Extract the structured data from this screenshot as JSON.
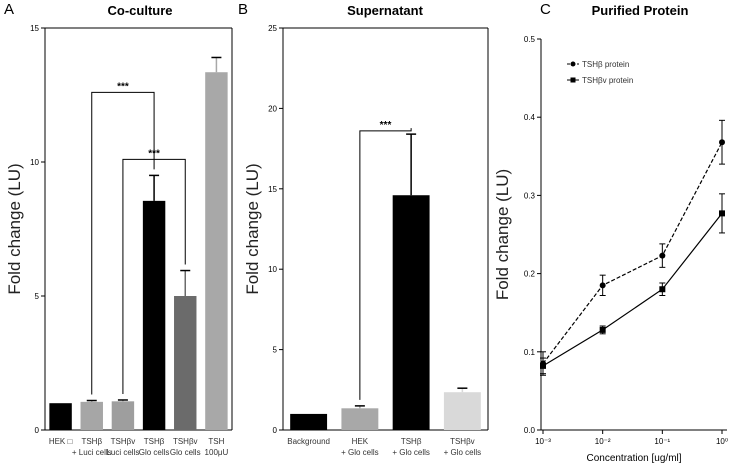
{
  "chart_data": [
    {
      "panel": "A",
      "type": "bar",
      "title": "Co-culture",
      "ylabel": "Fold change (LU)",
      "ylim": [
        0,
        15
      ],
      "yticks": [
        0,
        5,
        10,
        15
      ],
      "categories": [
        [
          "HEK □",
          ""
        ],
        [
          "TSHβ",
          "+ Luci cells"
        ],
        [
          "TSHβv",
          "Luci cells"
        ],
        [
          "TSHβ",
          "Glo cells"
        ],
        [
          "TSHβv",
          "Glo cells"
        ],
        [
          "TSH",
          "100μU"
        ]
      ],
      "values": [
        1.0,
        1.05,
        1.07,
        8.55,
        5.0,
        13.35
      ],
      "errors": [
        0,
        0.05,
        0.05,
        0.95,
        0.95,
        0.55
      ],
      "colors": [
        "#000000",
        "#a6a6a6",
        "#9e9e9e",
        "#000000",
        "#6b6b6b",
        "#a8a8a8"
      ],
      "significance": [
        {
          "from": 1,
          "to": 3,
          "level": 12.6,
          "label": "***"
        },
        {
          "from": 2,
          "to": 4,
          "level": 10.1,
          "label": "***"
        }
      ]
    },
    {
      "panel": "B",
      "type": "bar",
      "title": "Supernatant",
      "ylabel": "Fold change (LU)",
      "ylim": [
        0,
        25
      ],
      "yticks": [
        0,
        5,
        10,
        15,
        20,
        25
      ],
      "categories": [
        [
          "Background",
          ""
        ],
        [
          "HEK",
          "+ Glo cells"
        ],
        [
          "TSHβ",
          "+ Glo cells"
        ],
        [
          "TSHβv",
          "+ Glo cells"
        ]
      ],
      "values": [
        1.0,
        1.35,
        14.6,
        2.35
      ],
      "errors": [
        0,
        0.15,
        3.8,
        0.25
      ],
      "colors": [
        "#000000",
        "#a8a8a8",
        "#000000",
        "#d9d9d9"
      ],
      "significance": [
        {
          "from": 1,
          "to": 2,
          "level": 18.6,
          "label": "***"
        }
      ]
    },
    {
      "panel": "C",
      "type": "line",
      "title": "Purified Protein",
      "ylabel": "Fold change (LU)",
      "xlabel": "Concentration [ug/ml]",
      "xscale": "log",
      "ylim": [
        0,
        0.5
      ],
      "yticks": [
        "0.0",
        "0.1",
        "0.2",
        "0.3",
        "0.4",
        "0.5"
      ],
      "x": [
        0.001,
        0.01,
        0.1,
        1
      ],
      "xticklabels": [
        "10⁻³",
        "10⁻²",
        "10⁻¹",
        "10⁰"
      ],
      "legend_position": "top-left",
      "series": [
        {
          "name": "TSHβ protein",
          "style": "dashed",
          "marker": "circle",
          "values": [
            0.085,
            0.185,
            0.223,
            0.368
          ],
          "errors": [
            0.015,
            0.013,
            0.015,
            0.028
          ]
        },
        {
          "name": "TSHβv protein",
          "style": "solid",
          "marker": "square",
          "values": [
            0.082,
            0.128,
            0.18,
            0.277
          ],
          "errors": [
            0.01,
            0.005,
            0.008,
            0.025
          ]
        }
      ]
    }
  ]
}
